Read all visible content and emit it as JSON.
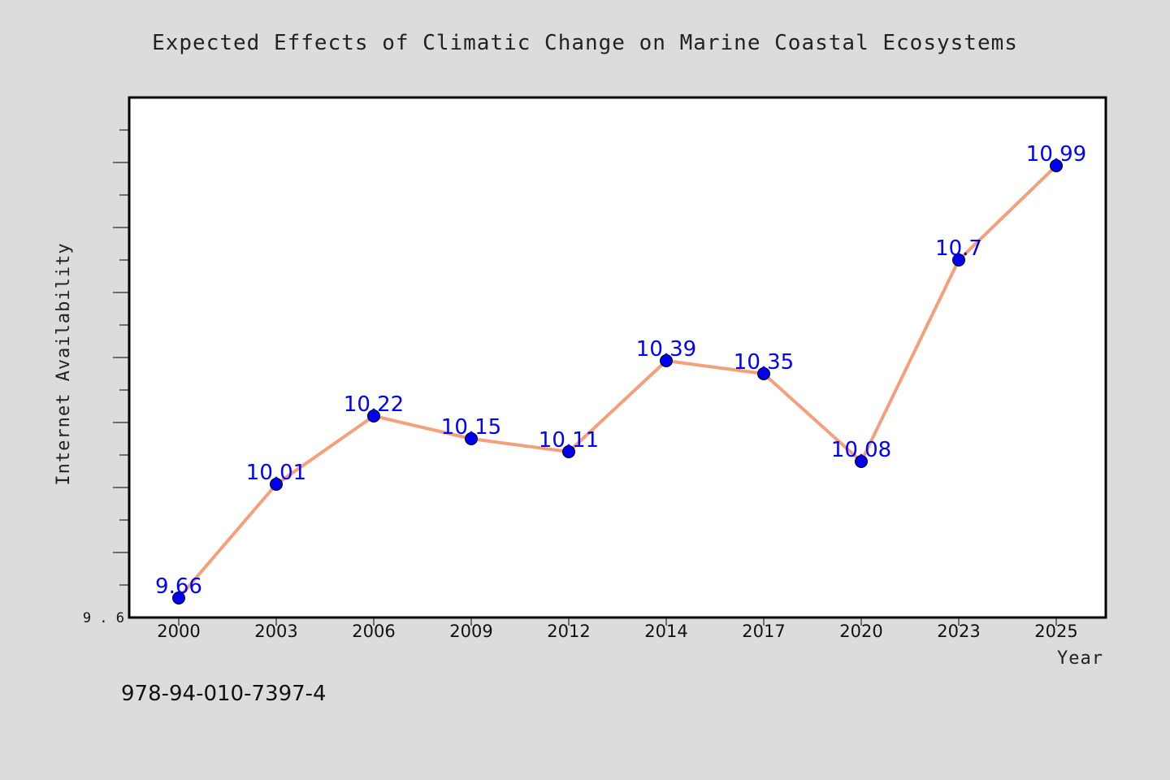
{
  "chart_data": {
    "type": "line",
    "title": "Expected Effects of Climatic Change on Marine Coastal Ecosystems",
    "xlabel": "Year",
    "ylabel": "Internet Availability",
    "categories": [
      "2000",
      "2003",
      "2006",
      "2009",
      "2012",
      "2014",
      "2017",
      "2020",
      "2023",
      "2025"
    ],
    "series": [
      {
        "values": [
          9.66,
          10.01,
          10.22,
          10.15,
          10.11,
          10.39,
          10.35,
          10.08,
          10.7,
          10.99
        ],
        "labels": [
          "9.66",
          "10.01",
          "10.22",
          "10.15",
          "10.11",
          "10.39",
          "10.35",
          "10.08",
          "10.7",
          "10.99"
        ],
        "line_color": "#f4a07a",
        "marker_color": "#0000ee"
      }
    ],
    "ylim": [
      9.6,
      11.2
    ],
    "ytick_labels": [
      "9.6"
    ],
    "grid": false,
    "legend": "none"
  },
  "footer": {
    "isbn": "978-94-010-7397-4"
  },
  "colors": {
    "background": "#dcdcdc",
    "plot_area": "#ffffff",
    "line": "#f4a07a",
    "marker": "#0000ee",
    "data_label": "#0000ff"
  }
}
